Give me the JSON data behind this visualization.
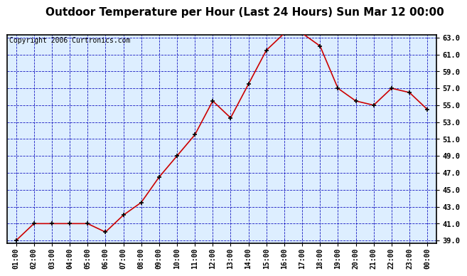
{
  "title": "Outdoor Temperature per Hour (Last 24 Hours) Sun Mar 12 00:00",
  "copyright": "Copyright 2006 Curtronics.com",
  "hours": [
    "01:00",
    "02:00",
    "03:00",
    "04:00",
    "05:00",
    "06:00",
    "07:00",
    "08:00",
    "09:00",
    "10:00",
    "11:00",
    "12:00",
    "13:00",
    "14:00",
    "15:00",
    "16:00",
    "17:00",
    "18:00",
    "19:00",
    "20:00",
    "21:00",
    "22:00",
    "23:00",
    "00:00"
  ],
  "temps": [
    39.0,
    41.0,
    41.0,
    41.0,
    41.0,
    40.0,
    42.0,
    43.5,
    46.5,
    49.0,
    51.5,
    55.5,
    53.5,
    57.5,
    61.5,
    63.5,
    63.5,
    62.0,
    57.0,
    55.5,
    55.0,
    57.0,
    56.5,
    54.5
  ],
  "ylim_min": 39.0,
  "ylim_max": 63.0,
  "ytick_step": 2.0,
  "line_color": "#cc0000",
  "marker_color": "#000000",
  "plot_bg": "#ddeeff",
  "grid_color": "#0000bb",
  "border_color": "#000000",
  "fig_bg": "#ffffff",
  "title_fontsize": 11,
  "copyright_fontsize": 7,
  "tick_fontsize": 7.5,
  "xtick_fontsize": 7
}
